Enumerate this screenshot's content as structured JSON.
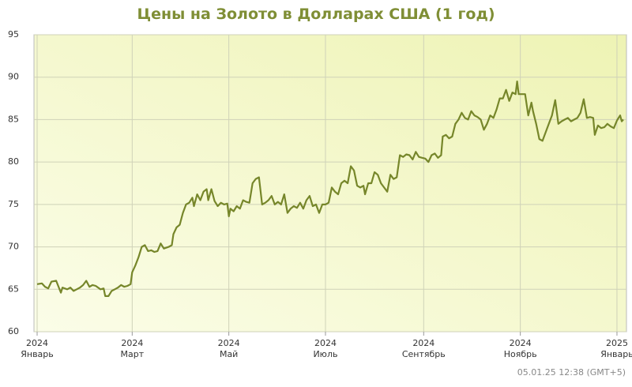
{
  "chart_data": {
    "type": "line",
    "title": "Цены на Золото в Долларах США (1 год)",
    "footer": "05.01.25 12:38 (GMT+5)",
    "x": [
      0,
      3,
      5,
      7,
      9,
      12,
      15,
      16,
      19,
      21,
      23,
      25,
      27,
      29,
      31,
      33,
      35,
      37,
      40,
      42,
      43,
      45,
      47,
      49,
      51,
      53,
      55,
      57,
      59,
      60,
      62,
      64,
      66,
      68,
      70,
      72,
      74,
      76,
      78,
      80,
      83,
      85,
      86,
      88,
      90,
      92,
      94,
      96,
      98,
      99,
      101,
      103,
      105,
      107,
      108,
      110,
      112,
      114,
      116,
      118,
      120,
      121,
      122,
      124,
      126,
      128,
      130,
      132,
      134,
      136,
      138,
      140,
      142,
      144,
      146,
      148,
      150,
      152,
      154,
      156,
      158,
      160,
      162,
      164,
      166,
      168,
      170,
      172,
      174,
      176,
      178,
      180,
      182,
      184,
      186,
      188,
      190,
      192,
      194,
      196,
      198,
      200,
      202,
      204,
      206,
      207,
      209,
      211,
      213,
      215,
      217,
      219,
      221,
      223,
      225,
      227,
      229,
      231,
      233,
      235,
      237,
      239,
      241,
      243,
      245,
      247,
      249,
      251,
      253,
      255,
      256,
      258,
      260,
      262,
      264,
      266,
      268,
      270,
      272,
      274,
      276,
      278,
      280,
      282,
      284,
      286,
      288,
      290,
      292,
      294,
      296,
      298,
      300,
      302,
      303,
      304,
      306,
      308,
      310,
      312,
      313,
      315,
      317,
      319,
      321,
      323,
      325,
      327,
      329,
      331,
      333,
      335,
      337,
      339,
      341,
      343,
      345,
      347,
      349,
      351,
      352,
      354,
      356,
      358,
      360,
      362,
      364,
      366,
      368,
      369,
      370
    ],
    "series": [
      {
        "color": "#76862a",
        "values": [
          65.6,
          65.7,
          65.3,
          65.1,
          65.9,
          66.0,
          64.6,
          65.2,
          65.0,
          65.2,
          64.8,
          65.0,
          65.2,
          65.5,
          66.0,
          65.3,
          65.5,
          65.4,
          65.0,
          65.1,
          64.2,
          64.2,
          64.8,
          65.0,
          65.2,
          65.5,
          65.3,
          65.4,
          65.6,
          67.0,
          67.8,
          68.8,
          70.0,
          70.2,
          69.5,
          69.6,
          69.4,
          69.5,
          70.4,
          69.8,
          70.0,
          70.2,
          71.5,
          72.3,
          72.6,
          74.0,
          75.0,
          75.2,
          75.8,
          74.8,
          76.2,
          75.5,
          76.5,
          76.8,
          75.5,
          76.8,
          75.4,
          74.8,
          75.2,
          75.0,
          75.1,
          73.6,
          74.5,
          74.2,
          74.8,
          74.5,
          75.5,
          75.3,
          75.2,
          77.5,
          78.0,
          78.2,
          75.0,
          75.2,
          75.5,
          76.0,
          75.0,
          75.3,
          75.0,
          76.2,
          74.0,
          74.5,
          74.8,
          74.6,
          75.2,
          74.5,
          75.5,
          76.0,
          74.8,
          75.0,
          74.0,
          75.0,
          75.0,
          75.2,
          77.0,
          76.5,
          76.2,
          77.5,
          77.8,
          77.5,
          79.5,
          79.0,
          77.2,
          77.0,
          77.2,
          76.2,
          77.5,
          77.5,
          78.8,
          78.5,
          77.5,
          77.0,
          76.5,
          78.5,
          78.0,
          78.2,
          80.8,
          80.6,
          80.9,
          80.8,
          80.3,
          81.2,
          80.6,
          80.5,
          80.4,
          80.0,
          80.8,
          81.0,
          80.5,
          80.8,
          83.0,
          83.2,
          82.8,
          83.0,
          84.5,
          85.0,
          85.8,
          85.2,
          85.0,
          86.0,
          85.5,
          85.3,
          85.0,
          83.8,
          84.5,
          85.5,
          85.2,
          86.2,
          87.5,
          87.5,
          88.5,
          87.2,
          88.2,
          88.0,
          89.5,
          88.0,
          88.0,
          88.0,
          85.5,
          87.0,
          86.0,
          84.5,
          82.7,
          82.5,
          83.5,
          84.5,
          85.5,
          87.3,
          84.5,
          84.8,
          85.0,
          85.2,
          84.8,
          85.0,
          85.2,
          85.8,
          87.4,
          85.2,
          85.3,
          85.2,
          83.2,
          84.3,
          84.0,
          84.1,
          84.5,
          84.2,
          84.0,
          84.9,
          85.5,
          84.8,
          85.0
        ]
      }
    ],
    "xlim": [
      -2,
      372
    ],
    "xticks": [
      {
        "value": 0,
        "label": "2024\nЯнварь"
      },
      {
        "value": 60,
        "label": "2024\nМарт"
      },
      {
        "value": 121,
        "label": "2024\nМай"
      },
      {
        "value": 182,
        "label": "2024\nИюль"
      },
      {
        "value": 244,
        "label": "2024\nСентябрь"
      },
      {
        "value": 305,
        "label": "2024\nНоябрь"
      },
      {
        "value": 366,
        "label": "2025\nЯнварь"
      }
    ],
    "ylim": [
      60,
      95
    ],
    "yticks": [
      60,
      65,
      70,
      75,
      80,
      85,
      90,
      95
    ],
    "grid": true
  }
}
